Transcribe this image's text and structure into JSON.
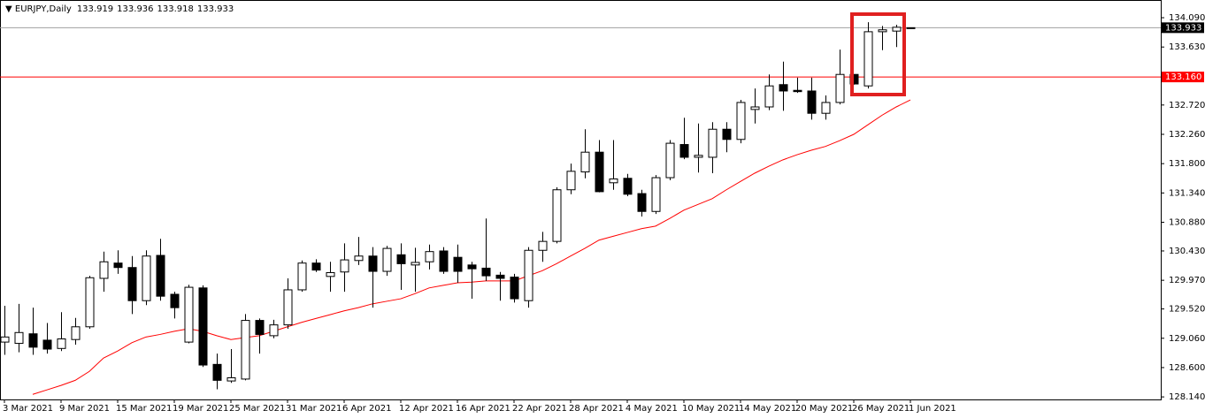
{
  "chart_data": {
    "type": "candlestick",
    "title": "EURJPY,Daily",
    "categories": [
      "3 Mar 2021",
      null,
      null,
      null,
      "9 Mar 2021",
      null,
      null,
      null,
      "15 Mar 2021",
      null,
      null,
      null,
      "19 Mar 2021",
      null,
      null,
      null,
      "25 Mar 2021",
      null,
      null,
      null,
      "31 Mar 2021",
      null,
      null,
      null,
      "6 Apr 2021",
      null,
      null,
      null,
      "12 Apr 2021",
      null,
      null,
      null,
      "16 Apr 2021",
      null,
      null,
      null,
      "22 Apr 2021",
      null,
      null,
      null,
      "28 Apr 2021",
      null,
      null,
      null,
      "4 May 2021",
      null,
      null,
      null,
      "10 May 2021",
      null,
      null,
      null,
      "14 May 2021",
      null,
      null,
      null,
      "20 May 2021",
      null,
      null,
      null,
      "26 May 2021",
      null,
      null,
      null,
      "1 Jun 2021"
    ],
    "open": [
      129.0,
      128.98,
      129.13,
      129.03,
      128.9,
      129.04,
      129.24,
      130.0,
      130.24,
      130.17,
      129.65,
      130.36,
      129.75,
      129.0,
      129.85,
      128.65,
      128.39,
      128.42,
      129.34,
      129.1,
      129.27,
      129.82,
      130.24,
      130.03,
      130.1,
      130.28,
      130.35,
      130.11,
      130.37,
      130.21,
      130.26,
      130.43,
      130.33,
      130.21,
      130.16,
      130.05,
      130.02,
      129.65,
      130.44,
      130.58,
      131.39,
      131.67,
      131.98,
      131.5,
      131.57,
      131.33,
      131.05,
      131.58,
      132.1,
      131.9,
      131.9,
      132.34,
      132.18,
      132.65,
      132.69,
      133.04,
      132.95,
      132.94,
      132.59,
      132.76,
      133.2,
      133.02,
      133.87,
      133.88,
      133.919
    ],
    "high": [
      129.57,
      129.6,
      129.54,
      129.3,
      129.47,
      129.38,
      130.04,
      130.42,
      130.44,
      130.35,
      130.44,
      130.62,
      129.79,
      129.9,
      129.89,
      128.82,
      128.89,
      129.44,
      129.37,
      129.35,
      130.0,
      130.28,
      130.3,
      130.26,
      130.55,
      130.65,
      130.49,
      130.51,
      130.55,
      130.48,
      130.53,
      130.49,
      130.53,
      130.26,
      130.94,
      130.1,
      130.07,
      130.49,
      130.73,
      131.43,
      131.8,
      132.34,
      132.17,
      132.17,
      131.64,
      131.39,
      131.62,
      132.17,
      132.52,
      132.43,
      132.45,
      132.45,
      132.8,
      132.98,
      133.2,
      133.4,
      133.15,
      133.15,
      132.87,
      133.59,
      133.2,
      134.02,
      133.96,
      133.98,
      133.936
    ],
    "low": [
      128.8,
      128.84,
      128.8,
      128.82,
      128.86,
      128.96,
      129.21,
      129.79,
      130.07,
      129.44,
      129.58,
      129.65,
      129.37,
      128.98,
      128.61,
      128.26,
      128.36,
      128.4,
      128.82,
      129.06,
      129.21,
      129.79,
      130.1,
      129.79,
      129.79,
      130.21,
      129.54,
      130.04,
      129.82,
      129.79,
      130.14,
      130.07,
      129.93,
      129.68,
      129.96,
      129.65,
      129.62,
      129.54,
      130.26,
      130.55,
      131.32,
      131.57,
      131.35,
      131.39,
      131.29,
      130.97,
      131.01,
      131.54,
      131.87,
      131.66,
      131.65,
      131.98,
      132.12,
      132.43,
      132.64,
      132.63,
      132.91,
      132.49,
      132.49,
      132.73,
      133.04,
      132.98,
      133.58,
      133.63,
      133.918
    ],
    "close": [
      129.08,
      129.15,
      128.92,
      128.89,
      129.05,
      129.24,
      130.01,
      130.26,
      130.17,
      129.65,
      130.35,
      129.72,
      129.54,
      129.86,
      128.64,
      128.4,
      128.44,
      129.34,
      129.12,
      129.27,
      129.82,
      130.24,
      130.13,
      130.09,
      130.29,
      130.35,
      130.11,
      130.47,
      130.23,
      130.25,
      130.42,
      130.11,
      130.11,
      130.15,
      130.04,
      130.0,
      129.68,
      130.44,
      130.58,
      131.39,
      131.68,
      131.98,
      131.36,
      131.56,
      131.32,
      131.05,
      131.58,
      132.12,
      131.9,
      131.93,
      132.34,
      132.18,
      132.76,
      132.69,
      133.02,
      132.94,
      132.93,
      132.59,
      132.76,
      133.2,
      133.05,
      133.87,
      133.9,
      133.94,
      133.933
    ],
    "ma": {
      "color": "#ff0000",
      "values": [
        null,
        null,
        128.18,
        128.25,
        128.32,
        128.4,
        128.54,
        128.75,
        128.86,
        128.99,
        129.08,
        129.12,
        129.17,
        129.21,
        129.17,
        129.1,
        129.04,
        129.07,
        129.1,
        129.17,
        129.24,
        129.31,
        129.37,
        129.43,
        129.49,
        129.54,
        129.6,
        129.64,
        129.68,
        129.76,
        129.85,
        129.89,
        129.93,
        129.94,
        129.96,
        129.96,
        129.96,
        130.04,
        130.12,
        130.23,
        130.35,
        130.47,
        130.6,
        130.66,
        130.72,
        130.78,
        130.82,
        130.94,
        131.07,
        131.16,
        131.25,
        131.39,
        131.52,
        131.65,
        131.76,
        131.86,
        131.94,
        132.01,
        132.07,
        132.16,
        132.26,
        132.41,
        132.56,
        132.69,
        132.8
      ]
    },
    "hline": {
      "value": 133.16,
      "label": "133.160",
      "color": "#ff0000"
    },
    "ylim": [
      128.1,
      134.34
    ],
    "yticks": [
      {
        "value": 128.14,
        "label": "128.140"
      },
      {
        "value": 128.6,
        "label": "128.600"
      },
      {
        "value": 129.06,
        "label": "129.060"
      },
      {
        "value": 129.52,
        "label": "129.520"
      },
      {
        "value": 129.97,
        "label": "129.970"
      },
      {
        "value": 130.43,
        "label": "130.430"
      },
      {
        "value": 130.88,
        "label": "130.880"
      },
      {
        "value": 131.34,
        "label": "131.340"
      },
      {
        "value": 131.8,
        "label": "131.800"
      },
      {
        "value": 132.26,
        "label": "132.260"
      },
      {
        "value": 132.72,
        "label": "132.720"
      },
      {
        "value": 133.63,
        "label": "133.630"
      },
      {
        "value": 134.09,
        "label": "134.090"
      }
    ]
  }
}
